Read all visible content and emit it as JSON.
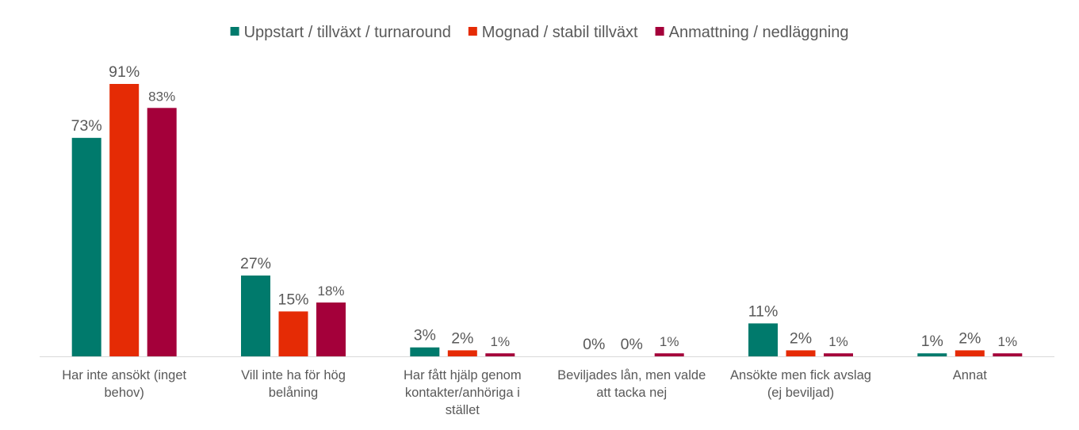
{
  "chart_data": {
    "type": "bar",
    "categories": [
      [
        "Har inte ansökt (inget",
        "behov)"
      ],
      [
        "Vill inte ha för hög",
        "belåning"
      ],
      [
        "Har fått hjälp genom",
        "kontakter/anhöriga i",
        "stället"
      ],
      [
        "Beviljades lån, men valde",
        "att tacka nej"
      ],
      [
        "Ansökte men fick avslag",
        "(ej beviljad)"
      ],
      [
        "Annat"
      ]
    ],
    "series": [
      {
        "name": "Uppstart / tillväxt / turnaround",
        "color": "#007A6C",
        "values": [
          73,
          27,
          3,
          0,
          11,
          1
        ]
      },
      {
        "name": "Mognad / stabil tillväxt",
        "color": "#E52B05",
        "values": [
          91,
          15,
          2,
          0,
          2,
          2
        ]
      },
      {
        "name": "Anmattning / nedläggning",
        "color": "#A4003A",
        "values": [
          83,
          18,
          1,
          1,
          1,
          1
        ]
      }
    ],
    "value_format": "{v}%",
    "ylim": [
      0,
      100
    ],
    "grid": false,
    "legend_position": "top-center",
    "title": "",
    "xlabel": "",
    "ylabel": ""
  }
}
